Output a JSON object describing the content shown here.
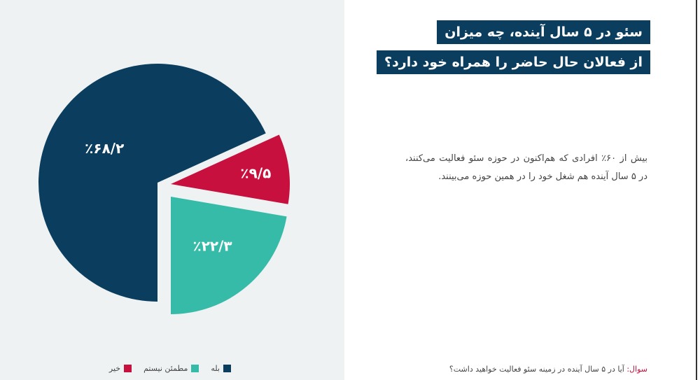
{
  "title_line1": "سئو در ۵ سال آینده، چه میزان",
  "title_line2": "از فعالان حال حاضر را همراه خود دارد؟",
  "description": "بیش از ۶۰٪ افرادی که هم‌اکنون در حوزه سئو فعالیت می‌کنند، در ۵ سال آینده هم شغل خود را در همین حوزه می‌بینند.",
  "question_label": "سوال:",
  "question_text": "آیا در ۵ سال آینده در زمینه سئو فعالیت خواهید داشت؟",
  "colors": {
    "title_bg": "#0a3d5e",
    "yes": "#0a3d5e",
    "no": "#c8103e",
    "unsure": "#35bba8",
    "left_bg": "#eef2f2"
  },
  "chart_data": {
    "type": "pie",
    "exploded": true,
    "slices": [
      {
        "name": "بله",
        "value": 68.2,
        "label": "٪۶۸/۲",
        "color": "#0a3d5e"
      },
      {
        "name": "خیر",
        "value": 9.5,
        "label": "٪۹/۵",
        "color": "#c8103e"
      },
      {
        "name": "مطمئن نیستم",
        "value": 22.3,
        "label": "٪۲۲/۳",
        "color": "#35bba8"
      }
    ],
    "legend": [
      "بله",
      "مطمئن نیستم",
      "خیر"
    ],
    "legend_placement": "bottom"
  }
}
